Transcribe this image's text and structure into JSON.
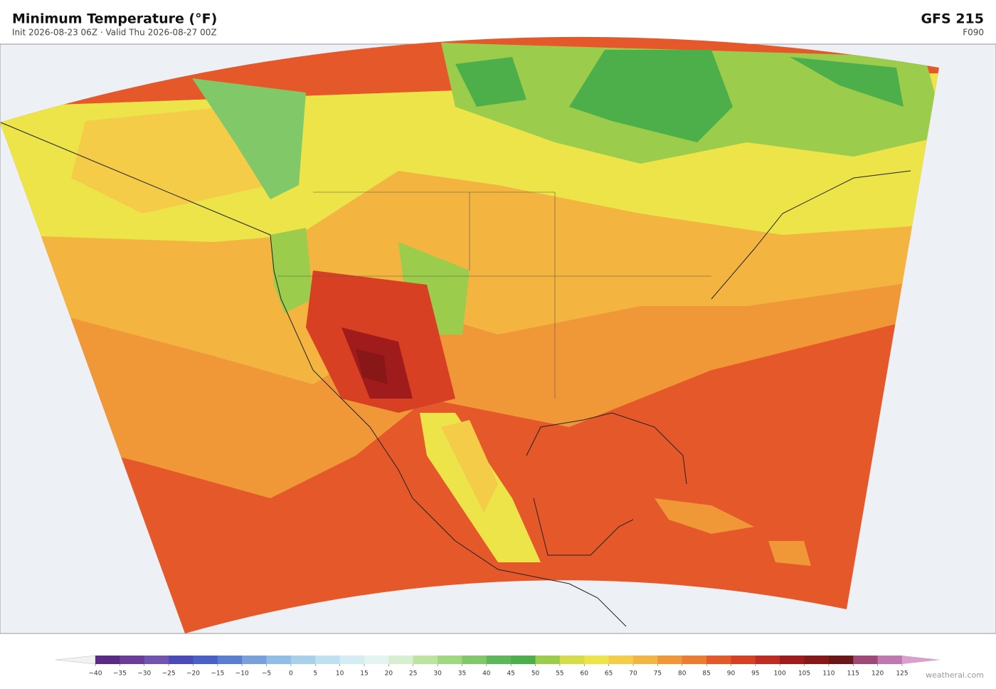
{
  "header": {
    "title": "Minimum Temperature  (°F)",
    "subtitle": "Init 2026-08-23 06Z  ·  Valid Thu 2026-08-27 00Z",
    "model": "GFS  215",
    "forecast_hour": "F090"
  },
  "colorbar": {
    "ticks": [
      {
        "value": -40,
        "label": "−40"
      },
      {
        "value": -35,
        "label": "−35"
      },
      {
        "value": -30,
        "label": "−30"
      },
      {
        "value": -25,
        "label": "−25"
      },
      {
        "value": -20,
        "label": "−20"
      },
      {
        "value": -15,
        "label": "−15"
      },
      {
        "value": -10,
        "label": "−10"
      },
      {
        "value": -5,
        "label": "−5"
      },
      0,
      5,
      10,
      15,
      20,
      25,
      30,
      35,
      40,
      45,
      50,
      55,
      60,
      65,
      70,
      75,
      80,
      85,
      90,
      95,
      100,
      105,
      110,
      115,
      120,
      125
    ],
    "colors": [
      "#5b2a86",
      "#6a3d9a",
      "#7353b0",
      "#4a4ab8",
      "#4a5fc8",
      "#5a7fd0",
      "#7aa0dc",
      "#90bde6",
      "#a8d0ea",
      "#bfe0f0",
      "#d4ecf4",
      "#e4f4f0",
      "#d8eed0",
      "#bce4a0",
      "#a0d880",
      "#80c868",
      "#5cb858",
      "#4caf4a",
      "#9ccc4c",
      "#d4dc48",
      "#ece448",
      "#f4cc48",
      "#f4b440",
      "#f09838",
      "#ec7c30",
      "#e4582a",
      "#d84024",
      "#c02c22",
      "#a01c1c",
      "#881818",
      "#6c1818",
      "#a04878",
      "#c078b0"
    ],
    "under_color": "#f2f2f2",
    "over_color": "#d8a0cc"
  },
  "watermark": "weatherai.com"
}
